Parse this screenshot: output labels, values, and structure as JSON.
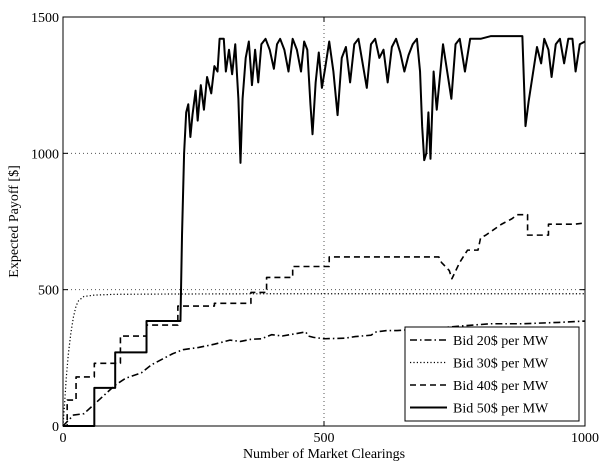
{
  "chart_data": {
    "type": "line",
    "xlabel": "Number of Market Clearings",
    "ylabel": "Expected Payoff [$]",
    "xlim": [
      0,
      1000
    ],
    "ylim": [
      0,
      1500
    ],
    "x_ticks": [
      0,
      500,
      1000
    ],
    "y_ticks": [
      0,
      500,
      1000,
      1500
    ],
    "grid": true,
    "legend_position": "bottom-right",
    "series": [
      {
        "name": "Bid 20$ per MW",
        "line_style": "dashdot",
        "points": [
          [
            0,
            0
          ],
          [
            10,
            20
          ],
          [
            20,
            40
          ],
          [
            40,
            45
          ],
          [
            60,
            80
          ],
          [
            80,
            115
          ],
          [
            100,
            150
          ],
          [
            120,
            175
          ],
          [
            150,
            195
          ],
          [
            170,
            225
          ],
          [
            190,
            245
          ],
          [
            210,
            265
          ],
          [
            230,
            280
          ],
          [
            260,
            288
          ],
          [
            290,
            300
          ],
          [
            320,
            315
          ],
          [
            340,
            310
          ],
          [
            360,
            318
          ],
          [
            380,
            320
          ],
          [
            400,
            335
          ],
          [
            420,
            330
          ],
          [
            450,
            340
          ],
          [
            465,
            345
          ],
          [
            470,
            330
          ],
          [
            480,
            325
          ],
          [
            500,
            320
          ],
          [
            540,
            322
          ],
          [
            560,
            328
          ],
          [
            590,
            333
          ],
          [
            600,
            345
          ],
          [
            620,
            350
          ],
          [
            640,
            350
          ],
          [
            680,
            355
          ],
          [
            720,
            360
          ],
          [
            770,
            368
          ],
          [
            820,
            375
          ],
          [
            880,
            375
          ],
          [
            950,
            380
          ],
          [
            1000,
            385
          ]
        ]
      },
      {
        "name": "Bid 30$ per MW",
        "line_style": "dotted",
        "points": [
          [
            0,
            0
          ],
          [
            3,
            80
          ],
          [
            6,
            170
          ],
          [
            10,
            260
          ],
          [
            15,
            340
          ],
          [
            20,
            400
          ],
          [
            25,
            440
          ],
          [
            30,
            460
          ],
          [
            40,
            475
          ],
          [
            60,
            480
          ],
          [
            100,
            483
          ],
          [
            200,
            484
          ],
          [
            400,
            485
          ],
          [
            600,
            485
          ],
          [
            800,
            485
          ],
          [
            1000,
            485
          ]
        ]
      },
      {
        "name": "Bid 40$ per MW",
        "line_style": "dashed",
        "points": [
          [
            0,
            0
          ],
          [
            8,
            0
          ],
          [
            8,
            95
          ],
          [
            25,
            95
          ],
          [
            25,
            180
          ],
          [
            60,
            180
          ],
          [
            60,
            230
          ],
          [
            110,
            230
          ],
          [
            110,
            330
          ],
          [
            160,
            330
          ],
          [
            160,
            370
          ],
          [
            220,
            370
          ],
          [
            220,
            440
          ],
          [
            290,
            440
          ],
          [
            290,
            450
          ],
          [
            360,
            450
          ],
          [
            360,
            490
          ],
          [
            390,
            490
          ],
          [
            390,
            545
          ],
          [
            440,
            545
          ],
          [
            440,
            585
          ],
          [
            510,
            585
          ],
          [
            510,
            620
          ],
          [
            600,
            620
          ],
          [
            700,
            620
          ],
          [
            720,
            620
          ],
          [
            725,
            600
          ],
          [
            740,
            570
          ],
          [
            745,
            540
          ],
          [
            760,
            600
          ],
          [
            775,
            645
          ],
          [
            795,
            645
          ],
          [
            800,
            690
          ],
          [
            810,
            700
          ],
          [
            840,
            740
          ],
          [
            860,
            760
          ],
          [
            870,
            775
          ],
          [
            890,
            775
          ],
          [
            890,
            700
          ],
          [
            930,
            700
          ],
          [
            930,
            740
          ],
          [
            980,
            740
          ],
          [
            1000,
            745
          ]
        ]
      },
      {
        "name": "Bid 50$ per MW",
        "line_style": "solid",
        "points": [
          [
            0,
            0
          ],
          [
            60,
            0
          ],
          [
            60,
            140
          ],
          [
            100,
            140
          ],
          [
            100,
            270
          ],
          [
            160,
            270
          ],
          [
            160,
            385
          ],
          [
            200,
            385
          ],
          [
            225,
            385
          ],
          [
            228,
            700
          ],
          [
            232,
            1000
          ],
          [
            236,
            1150
          ],
          [
            240,
            1180
          ],
          [
            244,
            1060
          ],
          [
            248,
            1140
          ],
          [
            254,
            1230
          ],
          [
            258,
            1120
          ],
          [
            264,
            1250
          ],
          [
            270,
            1160
          ],
          [
            276,
            1280
          ],
          [
            284,
            1220
          ],
          [
            290,
            1320
          ],
          [
            296,
            1300
          ],
          [
            300,
            1420
          ],
          [
            308,
            1420
          ],
          [
            312,
            1300
          ],
          [
            318,
            1380
          ],
          [
            324,
            1290
          ],
          [
            330,
            1400
          ],
          [
            336,
            1200
          ],
          [
            340,
            965
          ],
          [
            344,
            1200
          ],
          [
            350,
            1350
          ],
          [
            356,
            1410
          ],
          [
            362,
            1250
          ],
          [
            368,
            1380
          ],
          [
            374,
            1260
          ],
          [
            380,
            1400
          ],
          [
            388,
            1420
          ],
          [
            396,
            1380
          ],
          [
            404,
            1310
          ],
          [
            410,
            1400
          ],
          [
            416,
            1420
          ],
          [
            424,
            1380
          ],
          [
            432,
            1300
          ],
          [
            440,
            1420
          ],
          [
            448,
            1380
          ],
          [
            456,
            1300
          ],
          [
            462,
            1410
          ],
          [
            468,
            1380
          ],
          [
            474,
            1180
          ],
          [
            478,
            1070
          ],
          [
            484,
            1260
          ],
          [
            490,
            1370
          ],
          [
            496,
            1240
          ],
          [
            502,
            1310
          ],
          [
            510,
            1410
          ],
          [
            518,
            1300
          ],
          [
            526,
            1140
          ],
          [
            534,
            1350
          ],
          [
            542,
            1390
          ],
          [
            550,
            1260
          ],
          [
            558,
            1400
          ],
          [
            566,
            1420
          ],
          [
            574,
            1330
          ],
          [
            582,
            1240
          ],
          [
            590,
            1400
          ],
          [
            598,
            1420
          ],
          [
            606,
            1350
          ],
          [
            614,
            1380
          ],
          [
            622,
            1260
          ],
          [
            630,
            1390
          ],
          [
            638,
            1420
          ],
          [
            646,
            1370
          ],
          [
            654,
            1300
          ],
          [
            662,
            1360
          ],
          [
            670,
            1400
          ],
          [
            678,
            1420
          ],
          [
            684,
            1300
          ],
          [
            688,
            1100
          ],
          [
            692,
            975
          ],
          [
            696,
            1000
          ],
          [
            700,
            1150
          ],
          [
            704,
            980
          ],
          [
            710,
            1300
          ],
          [
            716,
            1160
          ],
          [
            722,
            1280
          ],
          [
            728,
            1400
          ],
          [
            736,
            1300
          ],
          [
            744,
            1200
          ],
          [
            752,
            1400
          ],
          [
            760,
            1420
          ],
          [
            770,
            1300
          ],
          [
            780,
            1420
          ],
          [
            800,
            1420
          ],
          [
            820,
            1430
          ],
          [
            840,
            1430
          ],
          [
            860,
            1430
          ],
          [
            880,
            1430
          ],
          [
            886,
            1100
          ],
          [
            892,
            1190
          ],
          [
            900,
            1290
          ],
          [
            908,
            1390
          ],
          [
            916,
            1330
          ],
          [
            922,
            1420
          ],
          [
            930,
            1380
          ],
          [
            936,
            1280
          ],
          [
            944,
            1400
          ],
          [
            952,
            1420
          ],
          [
            960,
            1330
          ],
          [
            968,
            1420
          ],
          [
            976,
            1420
          ],
          [
            982,
            1300
          ],
          [
            990,
            1400
          ],
          [
            1000,
            1410
          ]
        ]
      }
    ]
  }
}
